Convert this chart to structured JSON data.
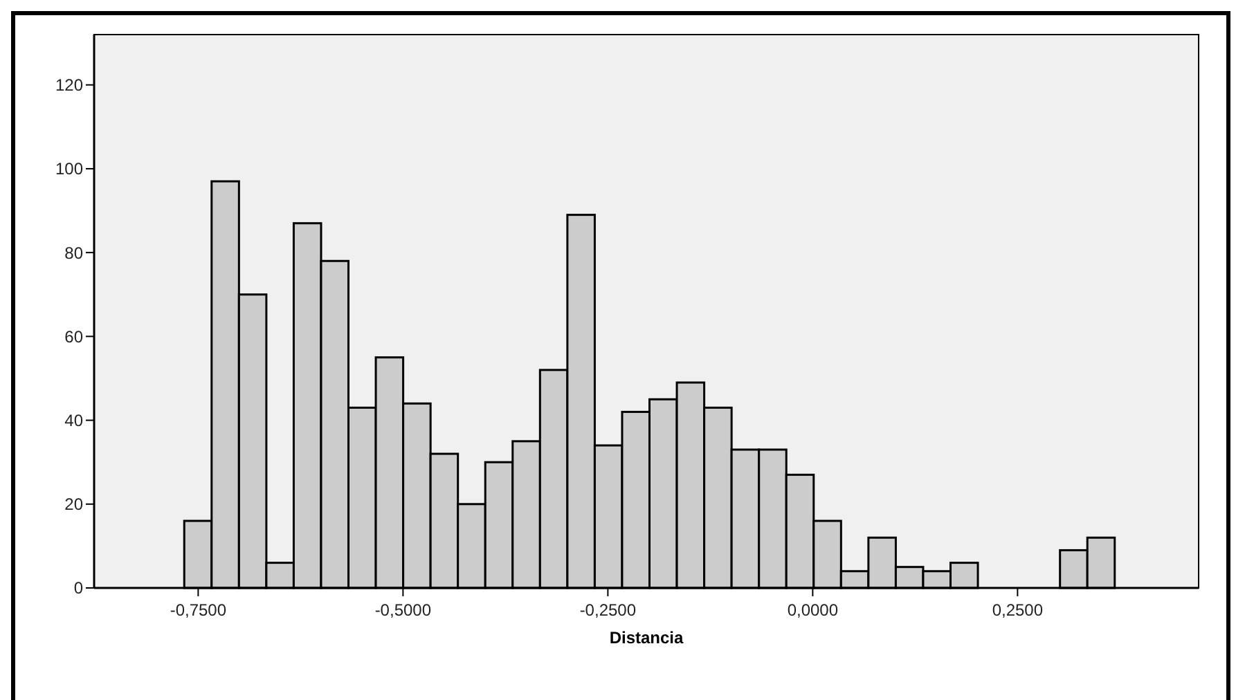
{
  "chart_data": {
    "type": "histogram",
    "xlabel": "Distancia",
    "bins": [
      -0.767,
      -0.7336,
      -0.7002,
      -0.6668,
      -0.6334,
      -0.6,
      -0.5666,
      -0.5332,
      -0.4998,
      -0.4664,
      -0.433,
      -0.3996,
      -0.3662,
      -0.3328,
      -0.2994,
      -0.266,
      -0.2326,
      -0.1992,
      -0.1658,
      -0.1324,
      -0.099,
      -0.0656,
      -0.0322,
      0.0012,
      0.0346,
      0.068,
      0.1014,
      0.1348,
      0.1682,
      0.2016,
      0.235,
      0.2684,
      0.3018,
      0.3352,
      0.3686
    ],
    "values": [
      16,
      97,
      70,
      6,
      87,
      78,
      43,
      55,
      44,
      32,
      20,
      30,
      35,
      52,
      89,
      34,
      42,
      45,
      49,
      43,
      33,
      33,
      27,
      16,
      4,
      12,
      5,
      4,
      6,
      0,
      0,
      0,
      9,
      12
    ],
    "color": "#cccccc",
    "xlim": [
      -0.877,
      0.471
    ],
    "ylim": [
      0,
      132
    ],
    "xticks": [
      {
        "value": -0.75,
        "label": "-0,7500"
      },
      {
        "value": -0.5,
        "label": "-0,5000"
      },
      {
        "value": -0.25,
        "label": "-0,2500"
      },
      {
        "value": 0,
        "label": "0,0000"
      },
      {
        "value": 0.25,
        "label": "0,2500"
      }
    ],
    "yticks": [
      0,
      20,
      40,
      60,
      80,
      100,
      120
    ],
    "grid": false
  }
}
